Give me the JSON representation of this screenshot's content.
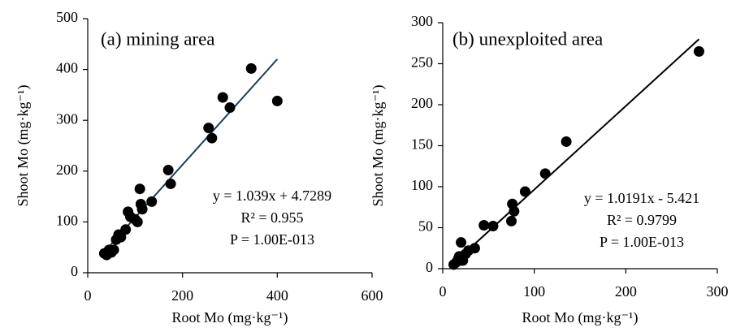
{
  "chart_data": [
    {
      "type": "scatter",
      "title": "(a) mining area",
      "x_label": "Root Mo (mg·kg⁻¹)",
      "y_label": "Shoot Mo (mg·kg⁻¹)",
      "x": [
        35,
        40,
        45,
        50,
        55,
        60,
        65,
        70,
        80,
        85,
        90,
        100,
        105,
        110,
        112,
        115,
        135,
        170,
        175,
        255,
        262,
        285,
        300,
        345,
        400
      ],
      "values": [
        38,
        35,
        45,
        40,
        45,
        65,
        75,
        70,
        85,
        120,
        110,
        105,
        100,
        165,
        135,
        125,
        140,
        202,
        175,
        285,
        265,
        345,
        325,
        402,
        338
      ],
      "color": "#000000",
      "trendline": {
        "slope": 1.039,
        "intercept": 4.7289,
        "color": "#1f3a5a"
      },
      "annotations": [
        "y = 1.039x + 4.7289",
        "R² = 0.955",
        "P = 1.00E-013"
      ],
      "xlim": [
        0,
        600
      ],
      "xticks": [
        0,
        200,
        400,
        600
      ],
      "ylim": [
        0,
        500
      ],
      "yticks": [
        0,
        100,
        200,
        300,
        400,
        500
      ]
    },
    {
      "type": "scatter",
      "title": "(b) unexploited area",
      "x_label": "Root Mo (mg·kg⁻¹)",
      "y_label": "Shoot Mo (mg·kg⁻¹)",
      "x": [
        12,
        15,
        17,
        18,
        20,
        20,
        22,
        25,
        28,
        35,
        45,
        55,
        75,
        76,
        78,
        90,
        112,
        135,
        280
      ],
      "values": [
        5,
        8,
        12,
        15,
        10,
        32,
        10,
        18,
        22,
        25,
        53,
        52,
        58,
        79,
        70,
        94,
        116,
        155,
        265
      ],
      "color": "#000000",
      "trendline": {
        "slope": 1.0191,
        "intercept": -5.421,
        "color": "#000000"
      },
      "annotations": [
        "y = 1.0191x - 5.421",
        "R² = 0.9799",
        "P = 1.00E-013"
      ],
      "xlim": [
        0,
        300
      ],
      "xticks": [
        0,
        100,
        200,
        300
      ],
      "ylim": [
        0,
        300
      ],
      "yticks": [
        0,
        50,
        100,
        150,
        200,
        250,
        300
      ]
    }
  ]
}
